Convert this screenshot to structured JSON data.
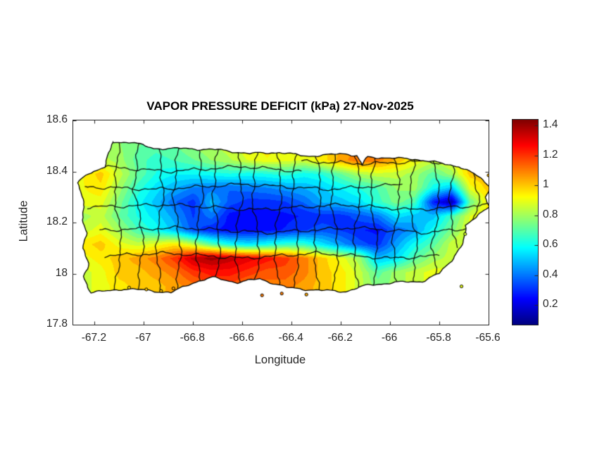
{
  "figure": {
    "title": "VAPOR PRESSURE DEFICIT (kPa) 27-Nov-2025",
    "background": "#ffffff"
  },
  "axes": {
    "xlabel": "Longitude",
    "ylabel": "Latitude",
    "xlim": [
      -67.287,
      -65.6
    ],
    "ylim": [
      17.8,
      18.6
    ],
    "xticks": [
      -67.2,
      -67.0,
      -66.8,
      -66.6,
      -66.4,
      -66.2,
      -66.0,
      -65.8,
      -65.6
    ],
    "xtick_labels": [
      "-67.2",
      "-67",
      "-66.8",
      "-66.6",
      "-66.4",
      "-66.2",
      "-66",
      "-65.8",
      "-65.6"
    ],
    "yticks": [
      18.6,
      18.4,
      18.2,
      18.0,
      17.8
    ],
    "ytick_labels": [
      "18.6",
      "18.4",
      "18.2",
      "18",
      "17.8"
    ],
    "axis_color": "#262626",
    "tick_length": 4.5
  },
  "colorbar": {
    "vmin": 0.07,
    "vmax": 1.44,
    "colormap": "jet",
    "ticks": [
      0.2,
      0.4,
      0.6,
      0.8,
      1.0,
      1.2,
      1.4
    ],
    "tick_labels": [
      "0.2",
      "0.4",
      "0.6",
      "0.8",
      "1",
      "1.2",
      "1.4"
    ]
  },
  "chart_data": {
    "type": "heatmap",
    "title": "VAPOR PRESSURE DEFICIT (kPa) 27-Nov-2025",
    "xlabel": "Longitude",
    "ylabel": "Latitude",
    "region": "Puerto Rico",
    "units": "kPa",
    "value_range": [
      0.07,
      1.44
    ],
    "contour_level_step": 0.05,
    "border_color": "#0a0a0a",
    "grid": {
      "lon0": -67.25,
      "lon1": -65.6,
      "lat0": 18.5,
      "lat1": 17.95,
      "nx": 23,
      "ny": 11,
      "values": [
        [
          0.78,
          0.8,
          0.78,
          0.73,
          0.7,
          0.72,
          0.78,
          0.82,
          0.85,
          0.92,
          0.95,
          0.88,
          0.9,
          0.95,
          1.02,
          1.08,
          1.08,
          1.05,
          0.95,
          0.9,
          0.92,
          0.95,
          0.92
        ],
        [
          0.82,
          0.85,
          0.8,
          0.7,
          0.65,
          0.68,
          0.72,
          0.78,
          0.82,
          0.88,
          0.92,
          0.9,
          0.88,
          0.95,
          1.05,
          1.12,
          1.1,
          1.02,
          0.92,
          0.86,
          0.9,
          1.0,
          1.0
        ],
        [
          0.92,
          1.0,
          0.85,
          0.72,
          0.62,
          0.58,
          0.58,
          0.6,
          0.62,
          0.6,
          0.62,
          0.65,
          0.6,
          0.63,
          0.72,
          0.82,
          0.86,
          0.85,
          0.8,
          0.7,
          0.8,
          1.0,
          1.02
        ],
        [
          0.92,
          0.96,
          0.8,
          0.65,
          0.55,
          0.48,
          0.42,
          0.4,
          0.38,
          0.4,
          0.42,
          0.45,
          0.48,
          0.52,
          0.58,
          0.63,
          0.68,
          0.78,
          0.8,
          0.6,
          0.5,
          0.9,
          1.0
        ],
        [
          0.9,
          0.9,
          0.75,
          0.6,
          0.5,
          0.38,
          0.3,
          0.5,
          0.35,
          0.3,
          0.3,
          0.32,
          0.38,
          0.48,
          0.5,
          0.55,
          0.65,
          0.75,
          0.68,
          0.28,
          0.12,
          0.72,
          0.95
        ],
        [
          0.8,
          0.85,
          0.72,
          0.62,
          0.55,
          0.45,
          0.32,
          0.4,
          0.25,
          0.24,
          0.25,
          0.26,
          0.28,
          0.3,
          0.3,
          0.35,
          0.4,
          0.55,
          0.5,
          0.5,
          0.68,
          0.88,
          0.95
        ],
        [
          0.85,
          0.9,
          0.8,
          0.68,
          0.6,
          0.5,
          0.35,
          0.28,
          0.25,
          0.25,
          0.26,
          0.28,
          0.32,
          0.35,
          0.32,
          0.28,
          0.26,
          0.38,
          0.45,
          0.6,
          0.75,
          0.9,
          0.88
        ],
        [
          0.95,
          1.0,
          0.9,
          0.85,
          0.9,
          0.95,
          0.85,
          0.7,
          0.6,
          0.55,
          0.6,
          0.65,
          0.65,
          0.55,
          0.45,
          0.35,
          0.3,
          0.45,
          0.6,
          0.7,
          0.85,
          0.9,
          0.85
        ],
        [
          0.9,
          0.95,
          1.0,
          1.05,
          1.1,
          1.2,
          1.35,
          1.4,
          1.35,
          1.3,
          1.25,
          1.2,
          1.1,
          1.0,
          0.9,
          0.8,
          0.5,
          0.55,
          0.7,
          0.8,
          0.85,
          0.85,
          0.85
        ],
        [
          0.85,
          0.9,
          1.0,
          1.0,
          1.05,
          1.1,
          1.2,
          1.25,
          1.25,
          1.2,
          1.15,
          1.15,
          1.1,
          1.0,
          0.95,
          0.85,
          0.7,
          0.8,
          0.85,
          0.9,
          0.9,
          0.9,
          0.9
        ],
        [
          0.85,
          0.9,
          0.95,
          1.0,
          1.0,
          1.05,
          1.1,
          1.15,
          1.15,
          1.1,
          1.1,
          1.1,
          1.05,
          1.0,
          0.95,
          0.85,
          0.75,
          0.8,
          0.85,
          0.9,
          0.9,
          0.9,
          0.9
        ]
      ]
    },
    "region_outline": [
      [
        -67.125,
        18.515
      ],
      [
        -67.05,
        18.515
      ],
      [
        -66.96,
        18.49
      ],
      [
        -66.84,
        18.49
      ],
      [
        -66.7,
        18.485
      ],
      [
        -66.57,
        18.47
      ],
      [
        -66.45,
        18.475
      ],
      [
        -66.34,
        18.46
      ],
      [
        -66.25,
        18.465
      ],
      [
        -66.18,
        18.47
      ],
      [
        -66.135,
        18.462
      ],
      [
        -66.115,
        18.425
      ],
      [
        -66.09,
        18.458
      ],
      [
        -66.0,
        18.452
      ],
      [
        -65.91,
        18.45
      ],
      [
        -65.81,
        18.435
      ],
      [
        -65.72,
        18.42
      ],
      [
        -65.64,
        18.38
      ],
      [
        -65.59,
        18.34
      ],
      [
        -65.615,
        18.3
      ],
      [
        -65.6,
        18.26
      ],
      [
        -65.65,
        18.22
      ],
      [
        -65.695,
        18.19
      ],
      [
        -65.7,
        18.12
      ],
      [
        -65.745,
        18.06
      ],
      [
        -65.8,
        18.0
      ],
      [
        -65.87,
        17.97
      ],
      [
        -65.98,
        17.965
      ],
      [
        -66.09,
        17.955
      ],
      [
        -66.18,
        17.93
      ],
      [
        -66.3,
        17.935
      ],
      [
        -66.42,
        17.945
      ],
      [
        -66.53,
        17.98
      ],
      [
        -66.62,
        17.965
      ],
      [
        -66.72,
        17.985
      ],
      [
        -66.8,
        17.965
      ],
      [
        -66.89,
        17.925
      ],
      [
        -66.99,
        17.935
      ],
      [
        -67.08,
        17.94
      ],
      [
        -67.215,
        17.925
      ],
      [
        -67.245,
        17.99
      ],
      [
        -67.225,
        18.04
      ],
      [
        -67.245,
        18.1
      ],
      [
        -67.235,
        18.16
      ],
      [
        -67.25,
        18.21
      ],
      [
        -67.24,
        18.26
      ],
      [
        -67.255,
        18.31
      ],
      [
        -67.27,
        18.355
      ],
      [
        -67.225,
        18.39
      ],
      [
        -67.16,
        18.42
      ]
    ],
    "admin_borders": [
      [
        [
          -67.1,
          18.52
        ],
        [
          -67.12,
          18.32
        ],
        [
          -67.09,
          18.12
        ],
        [
          -67.12,
          17.93
        ]
      ],
      [
        [
          -67.02,
          18.52
        ],
        [
          -67.04,
          18.33
        ],
        [
          -67.0,
          18.14
        ],
        [
          -67.03,
          17.92
        ]
      ],
      [
        [
          -66.94,
          18.5
        ],
        [
          -66.92,
          18.31
        ],
        [
          -66.95,
          18.12
        ],
        [
          -66.93,
          17.92
        ]
      ],
      [
        [
          -66.86,
          18.5
        ],
        [
          -66.88,
          18.3
        ],
        [
          -66.85,
          18.1
        ],
        [
          -66.87,
          17.91
        ]
      ],
      [
        [
          -66.78,
          18.51
        ],
        [
          -66.76,
          18.32
        ],
        [
          -66.79,
          18.13
        ],
        [
          -66.77,
          17.93
        ]
      ],
      [
        [
          -66.7,
          18.5
        ],
        [
          -66.72,
          18.3
        ],
        [
          -66.69,
          18.11
        ],
        [
          -66.71,
          17.93
        ]
      ],
      [
        [
          -66.62,
          18.5
        ],
        [
          -66.6,
          18.31
        ],
        [
          -66.63,
          18.12
        ],
        [
          -66.61,
          17.93
        ]
      ],
      [
        [
          -66.54,
          18.49
        ],
        [
          -66.56,
          18.3
        ],
        [
          -66.53,
          18.1
        ],
        [
          -66.55,
          17.92
        ]
      ],
      [
        [
          -66.46,
          18.5
        ],
        [
          -66.44,
          18.32
        ],
        [
          -66.47,
          18.12
        ],
        [
          -66.45,
          17.92
        ]
      ],
      [
        [
          -66.38,
          18.49
        ],
        [
          -66.4,
          18.3
        ],
        [
          -66.37,
          18.11
        ],
        [
          -66.39,
          17.92
        ]
      ],
      [
        [
          -66.3,
          18.49
        ],
        [
          -66.28,
          18.31
        ],
        [
          -66.31,
          18.12
        ],
        [
          -66.29,
          17.92
        ]
      ],
      [
        [
          -66.22,
          18.5
        ],
        [
          -66.24,
          18.3
        ],
        [
          -66.21,
          18.1
        ],
        [
          -66.23,
          17.93
        ]
      ],
      [
        [
          -66.14,
          18.49
        ],
        [
          -66.12,
          18.31
        ],
        [
          -66.15,
          18.12
        ],
        [
          -66.13,
          17.93
        ]
      ],
      [
        [
          -66.06,
          18.48
        ],
        [
          -66.08,
          18.3
        ],
        [
          -66.05,
          18.11
        ],
        [
          -66.07,
          17.94
        ]
      ],
      [
        [
          -65.98,
          18.48
        ],
        [
          -65.96,
          18.3
        ],
        [
          -65.99,
          18.12
        ],
        [
          -65.97,
          17.94
        ]
      ],
      [
        [
          -65.9,
          18.47
        ],
        [
          -65.92,
          18.29
        ],
        [
          -65.89,
          18.11
        ],
        [
          -65.91,
          17.96
        ]
      ],
      [
        [
          -65.82,
          18.46
        ],
        [
          -65.8,
          18.28
        ],
        [
          -65.83,
          18.1
        ],
        [
          -65.81,
          17.99
        ]
      ],
      [
        [
          -65.74,
          18.44
        ],
        [
          -65.76,
          18.27
        ],
        [
          -65.73,
          18.1
        ]
      ],
      [
        [
          -65.66,
          18.41
        ],
        [
          -65.64,
          18.28
        ],
        [
          -65.67,
          18.17
        ]
      ],
      [
        [
          -67.18,
          18.42
        ],
        [
          -66.9,
          18.4
        ],
        [
          -66.6,
          18.42
        ],
        [
          -66.36,
          18.4
        ]
      ],
      [
        [
          -67.24,
          18.34
        ],
        [
          -66.95,
          18.33
        ],
        [
          -66.6,
          18.35
        ],
        [
          -66.25,
          18.33
        ],
        [
          -65.95,
          18.35
        ]
      ],
      [
        [
          -67.23,
          18.26
        ],
        [
          -66.9,
          18.27
        ],
        [
          -66.55,
          18.25
        ],
        [
          -66.2,
          18.27
        ],
        [
          -65.9,
          18.25
        ],
        [
          -65.59,
          18.27
        ]
      ],
      [
        [
          -67.18,
          18.17
        ],
        [
          -66.85,
          18.18
        ],
        [
          -66.5,
          18.16
        ],
        [
          -66.15,
          18.18
        ],
        [
          -65.85,
          18.16
        ],
        [
          -65.66,
          18.18
        ]
      ],
      [
        [
          -67.16,
          18.07
        ],
        [
          -66.9,
          18.08
        ],
        [
          -66.6,
          18.06
        ],
        [
          -66.3,
          18.08
        ],
        [
          -66.0,
          18.06
        ],
        [
          -65.8,
          18.07
        ]
      ],
      [
        [
          -66.36,
          18.44
        ],
        [
          -66.1,
          18.43
        ],
        [
          -65.85,
          18.44
        ],
        [
          -65.64,
          18.42
        ]
      ]
    ],
    "islets": [
      [
        -67.06,
        17.945
      ],
      [
        -66.99,
        17.938
      ],
      [
        -66.93,
        17.932
      ],
      [
        -66.88,
        17.942
      ],
      [
        -66.52,
        17.915
      ],
      [
        -66.44,
        17.922
      ],
      [
        -66.34,
        17.918
      ],
      [
        -65.71,
        17.95
      ],
      [
        -65.695,
        18.155
      ],
      [
        -65.6,
        18.385
      ],
      [
        -65.575,
        18.345
      ],
      [
        -65.585,
        18.3
      ]
    ]
  }
}
